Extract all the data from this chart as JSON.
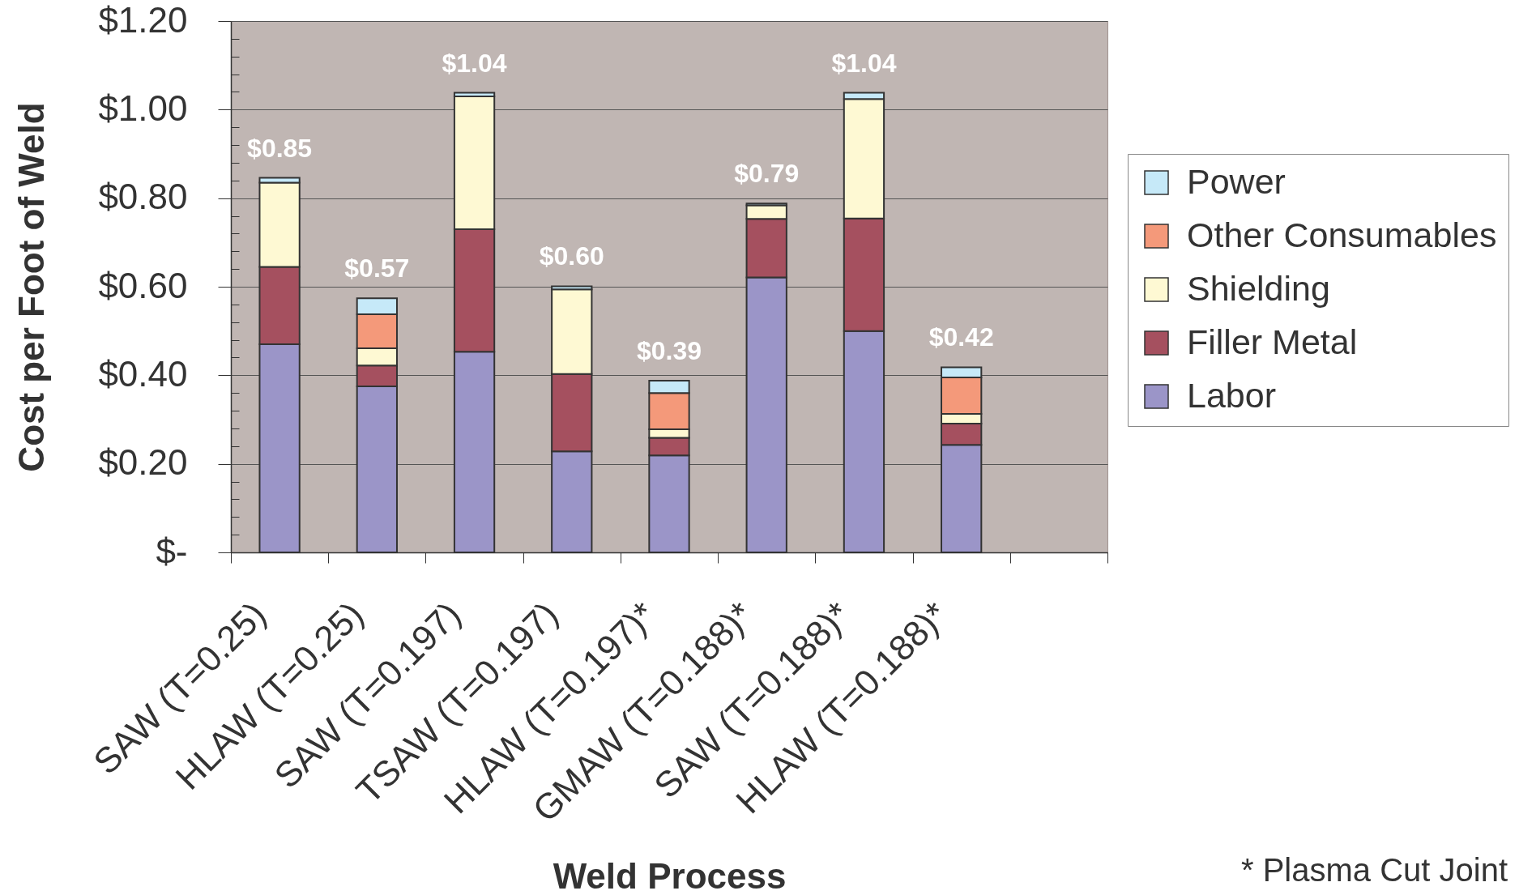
{
  "chart_data": {
    "type": "bar",
    "stacked": true,
    "xlabel": "Weld Process",
    "ylabel": "Cost per Foot of Weld",
    "categories": [
      "SAW (T=0.25)",
      "HLAW (T=0.25)",
      "SAW (T=0.197)",
      "TSAW (T=0.197)",
      "HLAW (T=0.197)*",
      "GMAW (T=0.188)*",
      "SAW (T=0.188)*",
      "HLAW (T=0.188)*",
      null
    ],
    "series": [
      {
        "name": "Labor",
        "color": "#9b95c8",
        "values": [
          0.47,
          0.375,
          0.453,
          0.228,
          0.219,
          0.621,
          0.5,
          0.243,
          null
        ]
      },
      {
        "name": "Filler Metal",
        "color": "#a5505f",
        "values": [
          0.175,
          0.047,
          0.277,
          0.175,
          0.04,
          0.132,
          0.254,
          0.048,
          null
        ]
      },
      {
        "name": "Shielding",
        "color": "#fef9d3",
        "values": [
          0.19,
          0.039,
          0.3,
          0.191,
          0.019,
          0.031,
          0.27,
          0.022,
          null
        ]
      },
      {
        "name": "Other Consumables",
        "color": "#f4997a",
        "values": [
          null,
          0.077,
          null,
          null,
          0.082,
          null,
          null,
          0.082,
          null
        ]
      },
      {
        "name": "Power",
        "color": "#c6e9f8",
        "values": [
          0.011,
          0.036,
          0.008,
          0.007,
          0.028,
          0.004,
          0.014,
          0.023,
          null
        ]
      }
    ],
    "totals": [
      "$0.85",
      "$0.57",
      "$1.04",
      "$0.60",
      "$0.39",
      "$0.79",
      "$1.04",
      "$0.42",
      null
    ],
    "ylim": [
      0,
      1.2
    ],
    "yticks": [
      {
        "value": 0,
        "label": "$-"
      },
      {
        "value": 0.04,
        "label": null
      },
      {
        "value": 0.08,
        "label": null
      },
      {
        "value": 0.12,
        "label": null
      },
      {
        "value": 0.16,
        "label": null
      },
      {
        "value": 0.2,
        "label": "$0.20"
      },
      {
        "value": 0.24,
        "label": null
      },
      {
        "value": 0.28,
        "label": null
      },
      {
        "value": 0.32,
        "label": null
      },
      {
        "value": 0.36,
        "label": null
      },
      {
        "value": 0.4,
        "label": "$0.40"
      },
      {
        "value": 0.44,
        "label": null
      },
      {
        "value": 0.48,
        "label": null
      },
      {
        "value": 0.52,
        "label": null
      },
      {
        "value": 0.56,
        "label": null
      },
      {
        "value": 0.6,
        "label": "$0.60"
      },
      {
        "value": 0.64,
        "label": null
      },
      {
        "value": 0.68,
        "label": null
      },
      {
        "value": 0.72,
        "label": null
      },
      {
        "value": 0.76,
        "label": null
      },
      {
        "value": 0.8,
        "label": "$0.80"
      },
      {
        "value": 0.84,
        "label": null
      },
      {
        "value": 0.88,
        "label": null
      },
      {
        "value": 0.92,
        "label": null
      },
      {
        "value": 0.96,
        "label": null
      },
      {
        "value": 1,
        "label": "$1.00"
      },
      {
        "value": 1.04,
        "label": null
      },
      {
        "value": 1.08,
        "label": null
      },
      {
        "value": 1.12,
        "label": null
      },
      {
        "value": 1.16,
        "label": null
      },
      {
        "value": 1.2,
        "label": "$1.20"
      }
    ],
    "grid": "y",
    "legend": "right",
    "annotations": [
      "* Plasma Cut Joint"
    ]
  }
}
